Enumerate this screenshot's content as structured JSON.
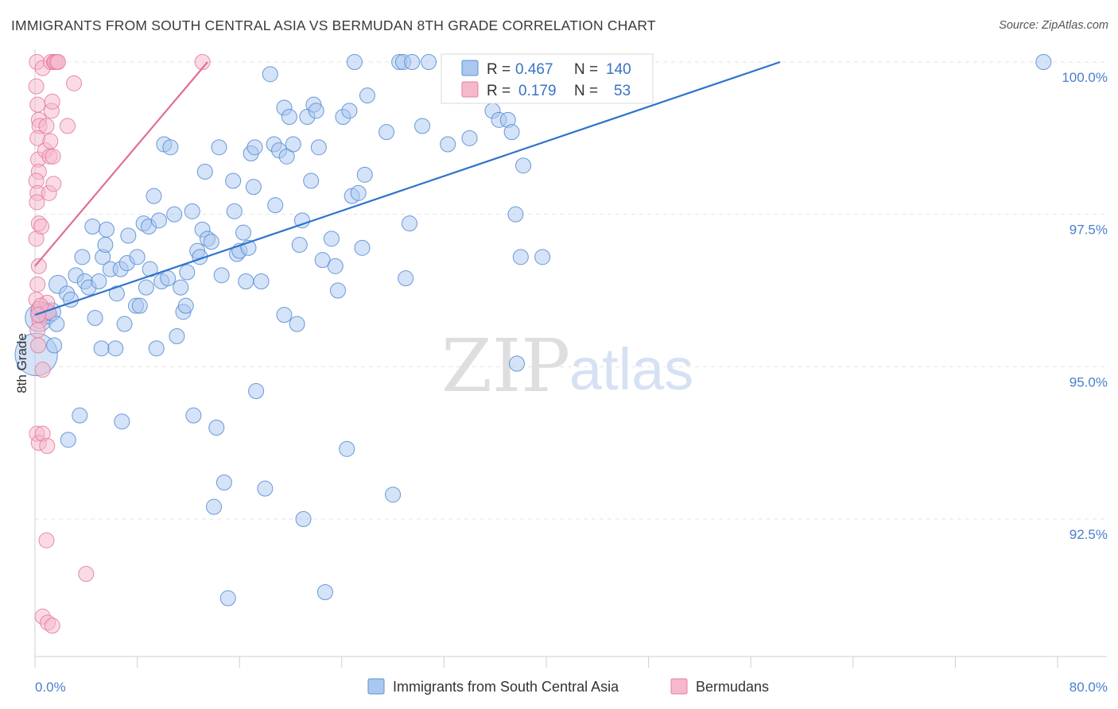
{
  "header": {
    "title": "IMMIGRANTS FROM SOUTH CENTRAL ASIA VS BERMUDAN 8TH GRADE CORRELATION CHART",
    "source": "Source: ZipAtlas.com"
  },
  "watermark": {
    "part1": "ZIP",
    "part2": "atlas"
  },
  "stats": {
    "series1": {
      "r_label": "R =",
      "r": "0.467",
      "n_label": "N =",
      "n": "140"
    },
    "series2": {
      "r_label": "R =",
      "r": "0.179",
      "n_label": "N =",
      "n": "53"
    }
  },
  "chart_data": {
    "type": "scatter",
    "title": "IMMIGRANTS FROM SOUTH CENTRAL ASIA VS BERMUDAN 8TH GRADE CORRELATION CHART",
    "xlabel": "",
    "ylabel": "8th Grade",
    "xlim": [
      0,
      80
    ],
    "ylim": [
      90.2,
      100.2
    ],
    "x_tick_labels": [
      "0.0%",
      "80.0%"
    ],
    "y_ticks": [
      92.5,
      95.0,
      97.5,
      100.0
    ],
    "y_tick_labels": [
      "92.5%",
      "95.0%",
      "97.5%",
      "100.0%"
    ],
    "grid": true,
    "legend_position": "bottom-center",
    "colors": {
      "series1_fill": "#aac8ef",
      "series1_stroke": "#5b8fd6",
      "series1_line": "#2f72cc",
      "series2_fill": "#f6b8cb",
      "series2_stroke": "#e67fa0",
      "series2_line": "#e06e95"
    },
    "series": [
      {
        "name": "Immigrants from South Central Asia",
        "trend": {
          "x1": 0,
          "y1": 95.85,
          "x2": 58.3,
          "y2": 100.0
        },
        "points": [
          [
            0.1,
            95.2,
            2.8
          ],
          [
            0.3,
            95.8,
            1.8
          ],
          [
            0.5,
            95.9,
            1.4
          ],
          [
            0.7,
            95.9,
            1.2
          ],
          [
            1.0,
            95.85,
            1.2
          ],
          [
            1.3,
            95.9,
            1.2
          ],
          [
            1.5,
            95.35,
            1.0
          ],
          [
            1.7,
            95.7,
            1.0
          ],
          [
            1.8,
            96.35,
            1.2
          ],
          [
            2.5,
            96.2,
            1.0
          ],
          [
            2.8,
            96.1,
            1.0
          ],
          [
            2.6,
            93.8,
            1.0
          ],
          [
            3.2,
            96.5,
            1.0
          ],
          [
            3.5,
            94.2,
            1.0
          ],
          [
            3.7,
            96.8,
            1.0
          ],
          [
            3.9,
            96.4,
            1.0
          ],
          [
            4.2,
            96.3,
            1.0
          ],
          [
            4.5,
            97.3,
            1.0
          ],
          [
            4.7,
            95.8,
            1.0
          ],
          [
            5.0,
            96.4,
            1.0
          ],
          [
            5.2,
            95.3,
            1.0
          ],
          [
            5.3,
            96.8,
            1.0
          ],
          [
            5.5,
            97.0,
            1.0
          ],
          [
            5.6,
            97.25,
            1.0
          ],
          [
            5.9,
            96.6,
            1.0
          ],
          [
            6.3,
            95.3,
            1.0
          ],
          [
            6.4,
            96.2,
            1.0
          ],
          [
            6.7,
            96.6,
            1.0
          ],
          [
            6.8,
            94.1,
            1.0
          ],
          [
            7.0,
            95.7,
            1.0
          ],
          [
            7.2,
            96.7,
            1.0
          ],
          [
            7.3,
            97.15,
            1.0
          ],
          [
            7.9,
            96.0,
            1.0
          ],
          [
            8.0,
            96.8,
            1.0
          ],
          [
            8.2,
            96.0,
            1.0
          ],
          [
            8.5,
            97.35,
            1.0
          ],
          [
            8.7,
            96.3,
            1.0
          ],
          [
            8.9,
            97.3,
            1.0
          ],
          [
            9.0,
            96.6,
            1.0
          ],
          [
            9.3,
            97.8,
            1.0
          ],
          [
            9.5,
            95.3,
            1.0
          ],
          [
            9.7,
            97.4,
            1.0
          ],
          [
            9.9,
            96.4,
            1.0
          ],
          [
            10.1,
            98.65,
            1.0
          ],
          [
            10.4,
            96.45,
            1.0
          ],
          [
            10.6,
            98.6,
            1.0
          ],
          [
            10.9,
            97.5,
            1.0
          ],
          [
            11.1,
            95.5,
            1.0
          ],
          [
            11.4,
            96.3,
            1.0
          ],
          [
            11.6,
            95.9,
            1.0
          ],
          [
            11.8,
            96.0,
            1.0
          ],
          [
            11.9,
            96.55,
            1.0
          ],
          [
            12.3,
            97.55,
            1.0
          ],
          [
            12.4,
            94.2,
            1.0
          ],
          [
            12.7,
            96.9,
            1.0
          ],
          [
            12.9,
            96.8,
            1.0
          ],
          [
            13.1,
            97.25,
            1.0
          ],
          [
            13.3,
            98.2,
            1.0
          ],
          [
            13.5,
            97.1,
            1.0
          ],
          [
            13.8,
            97.05,
            1.0
          ],
          [
            14.0,
            92.7,
            1.0
          ],
          [
            14.2,
            94.0,
            1.0
          ],
          [
            14.4,
            98.6,
            1.0
          ],
          [
            14.6,
            96.5,
            1.0
          ],
          [
            14.8,
            93.1,
            1.0
          ],
          [
            15.1,
            91.2,
            1.0
          ],
          [
            15.5,
            98.05,
            1.0
          ],
          [
            15.6,
            97.55,
            1.0
          ],
          [
            15.8,
            96.85,
            1.0
          ],
          [
            16.0,
            96.9,
            1.0
          ],
          [
            16.3,
            97.2,
            1.0
          ],
          [
            16.5,
            96.4,
            1.0
          ],
          [
            16.7,
            96.95,
            1.0
          ],
          [
            16.9,
            98.5,
            1.0
          ],
          [
            17.1,
            97.95,
            1.0
          ],
          [
            17.2,
            98.6,
            1.0
          ],
          [
            17.3,
            94.6,
            1.0
          ],
          [
            17.7,
            96.4,
            1.0
          ],
          [
            18.0,
            93.0,
            1.0
          ],
          [
            18.4,
            99.8,
            1.0
          ],
          [
            18.7,
            98.65,
            1.0
          ],
          [
            18.8,
            97.65,
            1.0
          ],
          [
            19.1,
            98.55,
            1.0
          ],
          [
            19.5,
            99.25,
            1.0
          ],
          [
            19.5,
            95.85,
            1.0
          ],
          [
            19.7,
            98.45,
            1.0
          ],
          [
            19.9,
            99.1,
            1.0
          ],
          [
            20.2,
            98.65,
            1.0
          ],
          [
            20.5,
            95.7,
            1.0
          ],
          [
            20.7,
            97.0,
            1.0
          ],
          [
            20.9,
            97.4,
            1.0
          ],
          [
            21.0,
            92.5,
            1.0
          ],
          [
            21.3,
            99.1,
            1.0
          ],
          [
            21.6,
            98.05,
            1.0
          ],
          [
            21.8,
            99.3,
            1.0
          ],
          [
            22.0,
            99.2,
            1.0
          ],
          [
            22.2,
            98.6,
            1.0
          ],
          [
            22.5,
            96.75,
            1.0
          ],
          [
            22.7,
            91.3,
            1.0
          ],
          [
            23.2,
            97.1,
            1.0
          ],
          [
            23.5,
            96.65,
            1.0
          ],
          [
            23.7,
            96.25,
            1.0
          ],
          [
            24.1,
            99.1,
            1.0
          ],
          [
            24.4,
            93.65,
            1.0
          ],
          [
            24.6,
            99.2,
            1.0
          ],
          [
            24.8,
            97.8,
            1.0
          ],
          [
            25.0,
            100.0,
            1.0
          ],
          [
            25.3,
            97.85,
            1.0
          ],
          [
            25.6,
            96.95,
            1.0
          ],
          [
            25.8,
            98.15,
            1.0
          ],
          [
            26.0,
            99.45,
            1.0
          ],
          [
            27.5,
            98.85,
            1.0
          ],
          [
            28.0,
            92.9,
            1.0
          ],
          [
            28.5,
            100.0,
            1.0
          ],
          [
            28.8,
            100.0,
            1.0
          ],
          [
            29.0,
            96.45,
            1.0
          ],
          [
            29.3,
            97.35,
            1.0
          ],
          [
            29.5,
            100.0,
            1.0
          ],
          [
            30.3,
            98.95,
            1.0
          ],
          [
            30.8,
            100.0,
            1.0
          ],
          [
            32.3,
            98.65,
            1.0
          ],
          [
            32.5,
            100.0,
            1.0
          ],
          [
            33.0,
            99.5,
            1.0
          ],
          [
            34.0,
            98.75,
            1.0
          ],
          [
            35.8,
            99.2,
            1.0
          ],
          [
            36.3,
            99.05,
            1.0
          ],
          [
            37.0,
            99.05,
            1.0
          ],
          [
            37.3,
            98.85,
            1.0
          ],
          [
            37.6,
            97.5,
            1.0
          ],
          [
            37.7,
            95.05,
            1.0
          ],
          [
            38.0,
            96.8,
            1.0
          ],
          [
            38.2,
            98.3,
            1.0
          ],
          [
            39.7,
            96.8,
            1.0
          ],
          [
            39.8,
            99.85,
            1.0
          ],
          [
            41.8,
            100.0,
            1.0
          ],
          [
            78.9,
            100.0,
            1.0
          ]
        ]
      },
      {
        "name": "Bermudans",
        "trend": {
          "x1": 0,
          "y1": 96.65,
          "x2": 13.5,
          "y2": 100.0
        },
        "points": [
          [
            0.15,
            100.0,
            1.0
          ],
          [
            0.1,
            99.6,
            1.0
          ],
          [
            0.2,
            99.3,
            1.0
          ],
          [
            0.3,
            99.05,
            1.0
          ],
          [
            0.35,
            98.95,
            1.0
          ],
          [
            0.2,
            98.75,
            1.0
          ],
          [
            0.25,
            98.4,
            1.0
          ],
          [
            0.3,
            98.2,
            1.0
          ],
          [
            0.1,
            98.05,
            1.0
          ],
          [
            0.2,
            97.85,
            1.0
          ],
          [
            0.15,
            97.7,
            1.0
          ],
          [
            0.3,
            97.35,
            1.0
          ],
          [
            0.1,
            97.1,
            1.0
          ],
          [
            0.3,
            96.65,
            1.0
          ],
          [
            0.2,
            96.35,
            1.0
          ],
          [
            0.1,
            96.1,
            1.0
          ],
          [
            0.3,
            95.95,
            1.0
          ],
          [
            0.35,
            95.75,
            1.0
          ],
          [
            0.2,
            95.6,
            1.0
          ],
          [
            0.25,
            95.35,
            1.0
          ],
          [
            0.6,
            94.95,
            1.0
          ],
          [
            0.15,
            93.9,
            1.0
          ],
          [
            0.3,
            93.75,
            1.0
          ],
          [
            0.6,
            93.9,
            1.0
          ],
          [
            0.6,
            99.9,
            1.0
          ],
          [
            0.8,
            98.55,
            1.0
          ],
          [
            0.9,
            98.95,
            1.0
          ],
          [
            0.95,
            96.05,
            1.0
          ],
          [
            1.05,
            95.9,
            1.0
          ],
          [
            1.15,
            98.45,
            1.0
          ],
          [
            1.1,
            97.85,
            1.0
          ],
          [
            1.2,
            98.7,
            1.0
          ],
          [
            1.3,
            99.2,
            1.0
          ],
          [
            1.4,
            98.45,
            1.0
          ],
          [
            1.45,
            98.0,
            1.0
          ],
          [
            1.35,
            99.35,
            1.0
          ],
          [
            1.25,
            100.0,
            1.0
          ],
          [
            1.5,
            100.0,
            1.0
          ],
          [
            1.55,
            100.0,
            1.0
          ],
          [
            1.7,
            100.0,
            1.0
          ],
          [
            1.8,
            100.0,
            1.0
          ],
          [
            2.55,
            98.95,
            1.0
          ],
          [
            3.05,
            99.65,
            1.0
          ],
          [
            0.9,
            92.15,
            1.0
          ],
          [
            0.95,
            93.7,
            1.0
          ],
          [
            0.6,
            90.9,
            1.0
          ],
          [
            1.0,
            90.8,
            1.0
          ],
          [
            1.35,
            90.75,
            1.0
          ],
          [
            4.0,
            91.6,
            1.0
          ],
          [
            0.5,
            97.3,
            1.0
          ],
          [
            0.45,
            96.0,
            1.0
          ],
          [
            0.25,
            95.85,
            1.0
          ],
          [
            13.1,
            100.0,
            1.0
          ]
        ]
      }
    ]
  },
  "legend": {
    "items": [
      {
        "label": "Immigrants from South Central Asia"
      },
      {
        "label": "Bermudans"
      }
    ]
  }
}
